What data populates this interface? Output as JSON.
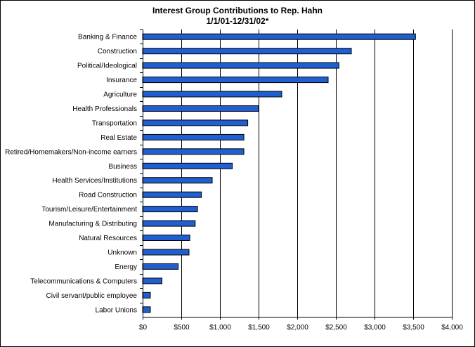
{
  "chart_data": {
    "type": "bar",
    "orientation": "horizontal",
    "title": "Interest Group Contributions to Rep. Hahn",
    "subtitle": "1/1/01-12/31/02*",
    "xlabel": "",
    "ylabel": "",
    "xlim": [
      0,
      4000
    ],
    "xticks": [
      "$0",
      "$500",
      "$1,000",
      "$1,500",
      "$2,000",
      "$2,500",
      "$3,000",
      "$3,500",
      "$4,000"
    ],
    "grid": "vertical",
    "legend": "none",
    "bar_color": "#1f5fd0",
    "categories": [
      "Banking & Finance",
      "Construction",
      "Political/Ideological",
      "Insurance",
      "Agriculture",
      "Health Professionals",
      "Transportation",
      "Real Estate",
      "Retired/Homemakers/Non-income earners",
      "Business",
      "Health Services/Institutions",
      "Road Construction",
      "Tourism/Leisure/Entertainment",
      "Manufacturing & Distributing",
      "Natural Resources",
      "Unknown",
      "Energy",
      "Telecommunications & Computers",
      "Civil servant/public employee",
      "Labor Unions"
    ],
    "values": [
      3530,
      2700,
      2540,
      2400,
      1800,
      1500,
      1360,
      1310,
      1310,
      1160,
      900,
      760,
      710,
      680,
      610,
      600,
      460,
      250,
      100,
      100
    ]
  }
}
